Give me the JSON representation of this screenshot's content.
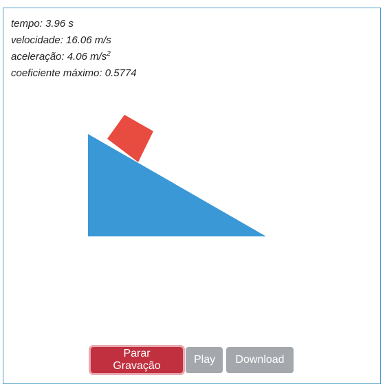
{
  "stats": {
    "tempo": "tempo: 3.96 s",
    "velocidade": "velocidade: 16.06 m/s",
    "aceleracao": "aceleração: 4.06 m/s",
    "aceleracao_exp": "2",
    "coeficiente": "coeficiente máximo: 0.5774"
  },
  "colors": {
    "ramp": "#3a98d6",
    "block": "#e84b3f",
    "border": "#4a9cc9",
    "record_button": "#c0303f",
    "disabled_button": "#a4a8ad"
  },
  "buttons": {
    "record_label": "Parar Gravação",
    "play_label": "Play",
    "download_label": "Download"
  }
}
